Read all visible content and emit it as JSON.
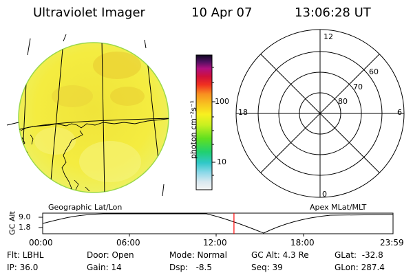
{
  "header": {
    "instrument": "Ultraviolet Imager",
    "date": "10 Apr 07",
    "time": "13:06:28 UT"
  },
  "colorbar": {
    "unit_label": "photon cm⁻²s⁻¹",
    "ticks": [
      "100",
      "10"
    ]
  },
  "polar_plot": {
    "mlt_labels": [
      "12",
      "18",
      "6",
      "0"
    ],
    "lat_labels": [
      "60",
      "70",
      "80"
    ]
  },
  "panel_labels": {
    "left": "Geographic Lat/Lon",
    "right": "Apex MLat/MLT"
  },
  "timeline": {
    "ylabel": "GC Alt",
    "y_ticks": [
      "9.0",
      "1.8"
    ],
    "x_ticks": [
      "00:00",
      "06:00",
      "12:00",
      "18:00",
      "23:59"
    ],
    "current_time_fraction": 0.546
  },
  "status": {
    "flt": "Flt: LBHL",
    "ip": "IP: 36.0",
    "door": "Door: Open",
    "gain": "Gain: 14",
    "mode": "Mode: Normal",
    "dsp": "Dsp:   -8.5",
    "gc_alt": "GC Alt: 4.3 Re",
    "seq": "Seq: 39",
    "glat": "GLat:  -32.8",
    "glon": "GLon: 287.4"
  },
  "colors": {
    "disk_fill": "#f2ee3a",
    "disk_edge": "#9bd84a",
    "cursor": "#ff0000"
  }
}
